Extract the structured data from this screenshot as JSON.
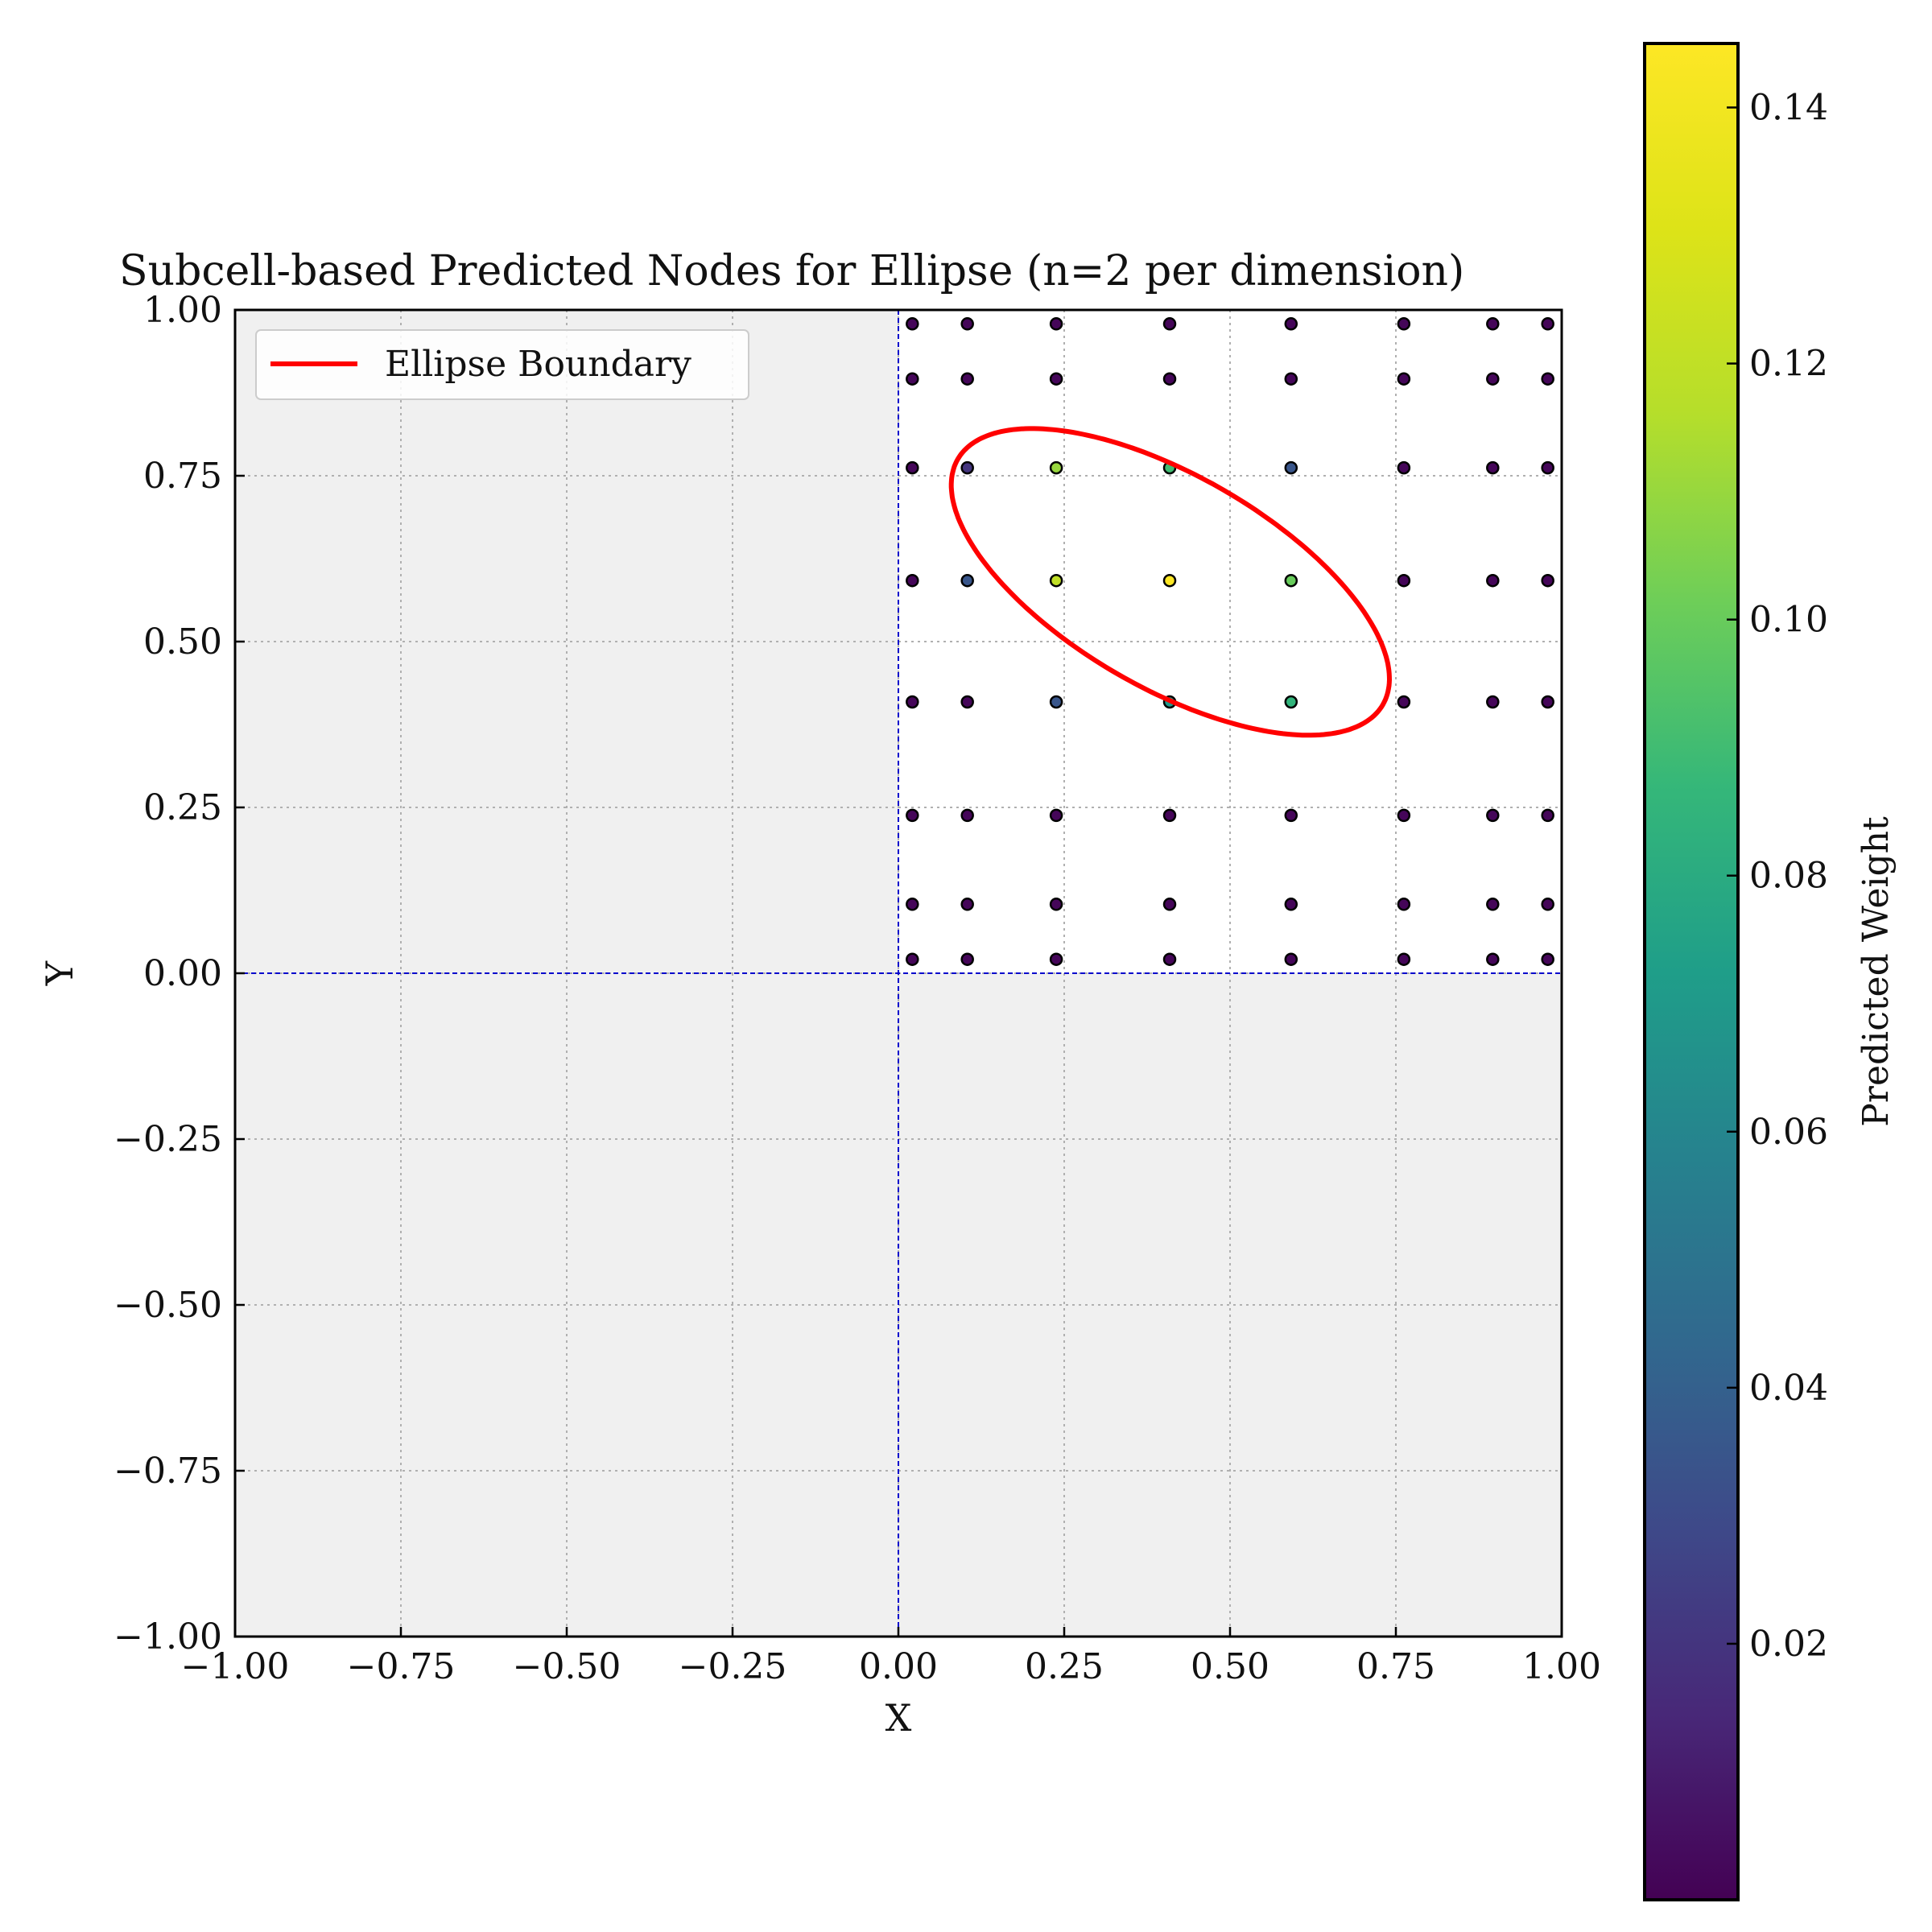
{
  "chart_data": {
    "type": "scatter",
    "title": "Subcell-based Predicted Nodes for Ellipse (n=2 per dimension)",
    "xlabel": "X",
    "ylabel": "Y",
    "xlim": [
      -1.0,
      1.0
    ],
    "ylim": [
      -1.0,
      1.0
    ],
    "xticks": [
      "−1.00",
      "−0.75",
      "−0.50",
      "−0.25",
      "0.00",
      "0.25",
      "0.50",
      "0.75",
      "1.00"
    ],
    "yticks": [
      "−1.00",
      "−0.75",
      "−0.50",
      "−0.25",
      "0.00",
      "0.25",
      "0.50",
      "0.75",
      "1.00"
    ],
    "grid": true,
    "legend": {
      "placement": "upper-left",
      "entries": [
        {
          "label": "Ellipse Boundary",
          "color": "#ff0000"
        }
      ]
    },
    "shaded_region": "x < 0 or y < 0",
    "reference_lines": {
      "x": 0.0,
      "y": 0.0,
      "color": "#0000cc"
    },
    "ellipse": {
      "center": [
        0.41,
        0.59
      ],
      "semi_major": 0.37,
      "semi_minor": 0.16,
      "angle_deg": -30,
      "color": "#ff0000"
    },
    "nodes": {
      "x": [
        0.021,
        0.104,
        0.238,
        0.409,
        0.592,
        0.762,
        0.896,
        0.979
      ],
      "y": [
        0.021,
        0.104,
        0.238,
        0.409,
        0.592,
        0.762,
        0.896,
        0.979
      ],
      "weights": [
        {
          "x": 0.104,
          "y": 0.762,
          "w": 0.02
        },
        {
          "x": 0.238,
          "y": 0.762,
          "w": 0.11
        },
        {
          "x": 0.409,
          "y": 0.762,
          "w": 0.09
        },
        {
          "x": 0.592,
          "y": 0.762,
          "w": 0.035
        },
        {
          "x": 0.104,
          "y": 0.592,
          "w": 0.035
        },
        {
          "x": 0.238,
          "y": 0.592,
          "w": 0.12
        },
        {
          "x": 0.409,
          "y": 0.592,
          "w": 0.145
        },
        {
          "x": 0.592,
          "y": 0.592,
          "w": 0.1
        },
        {
          "x": 0.238,
          "y": 0.409,
          "w": 0.035
        },
        {
          "x": 0.409,
          "y": 0.409,
          "w": 0.07
        },
        {
          "x": 0.592,
          "y": 0.409,
          "w": 0.085
        }
      ],
      "default_weight": 0.002
    },
    "colorbar": {
      "label": "Predicted Weight",
      "range": [
        0.0,
        0.145
      ],
      "ticks": [
        0.02,
        0.04,
        0.06,
        0.08,
        0.1,
        0.12,
        0.14
      ],
      "tick_labels": [
        "0.02",
        "0.04",
        "0.06",
        "0.08",
        "0.10",
        "0.12",
        "0.14"
      ],
      "colormap": "viridis"
    }
  }
}
